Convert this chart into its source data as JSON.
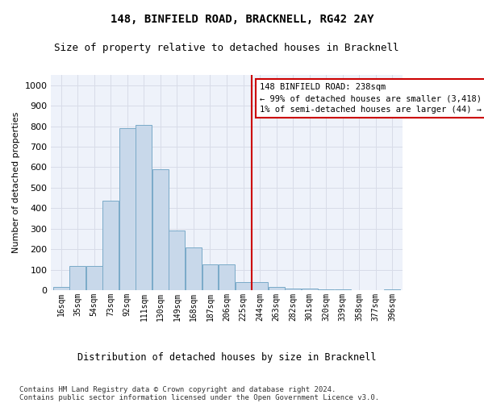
{
  "title": "148, BINFIELD ROAD, BRACKNELL, RG42 2AY",
  "subtitle": "Size of property relative to detached houses in Bracknell",
  "xlabel": "Distribution of detached houses by size in Bracknell",
  "ylabel": "Number of detached properties",
  "bar_labels": [
    "16sqm",
    "35sqm",
    "54sqm",
    "73sqm",
    "92sqm",
    "111sqm",
    "130sqm",
    "149sqm",
    "168sqm",
    "187sqm",
    "206sqm",
    "225sqm",
    "244sqm",
    "263sqm",
    "282sqm",
    "301sqm",
    "320sqm",
    "339sqm",
    "358sqm",
    "377sqm",
    "396sqm"
  ],
  "bar_heights": [
    15,
    120,
    120,
    435,
    790,
    805,
    590,
    290,
    210,
    125,
    125,
    40,
    40,
    15,
    10,
    10,
    5,
    5,
    0,
    0,
    5
  ],
  "bar_color": "#c8d8ea",
  "bar_edge_color": "#7aaac8",
  "grid_color": "#d8dce8",
  "background_color": "#ffffff",
  "plot_bg_color": "#eef2fa",
  "marker_label": "148 BINFIELD ROAD: 238sqm",
  "annotation_line1": "← 99% of detached houses are smaller (3,418)",
  "annotation_line2": "1% of semi-detached houses are larger (44) →",
  "annotation_box_color": "#ffffff",
  "annotation_border_color": "#cc0000",
  "marker_line_color": "#cc0000",
  "ylim": [
    0,
    1050
  ],
  "yticks": [
    0,
    100,
    200,
    300,
    400,
    500,
    600,
    700,
    800,
    900,
    1000
  ],
  "footer_line1": "Contains HM Land Registry data © Crown copyright and database right 2024.",
  "footer_line2": "Contains public sector information licensed under the Open Government Licence v3.0.",
  "bin_width": 19
}
